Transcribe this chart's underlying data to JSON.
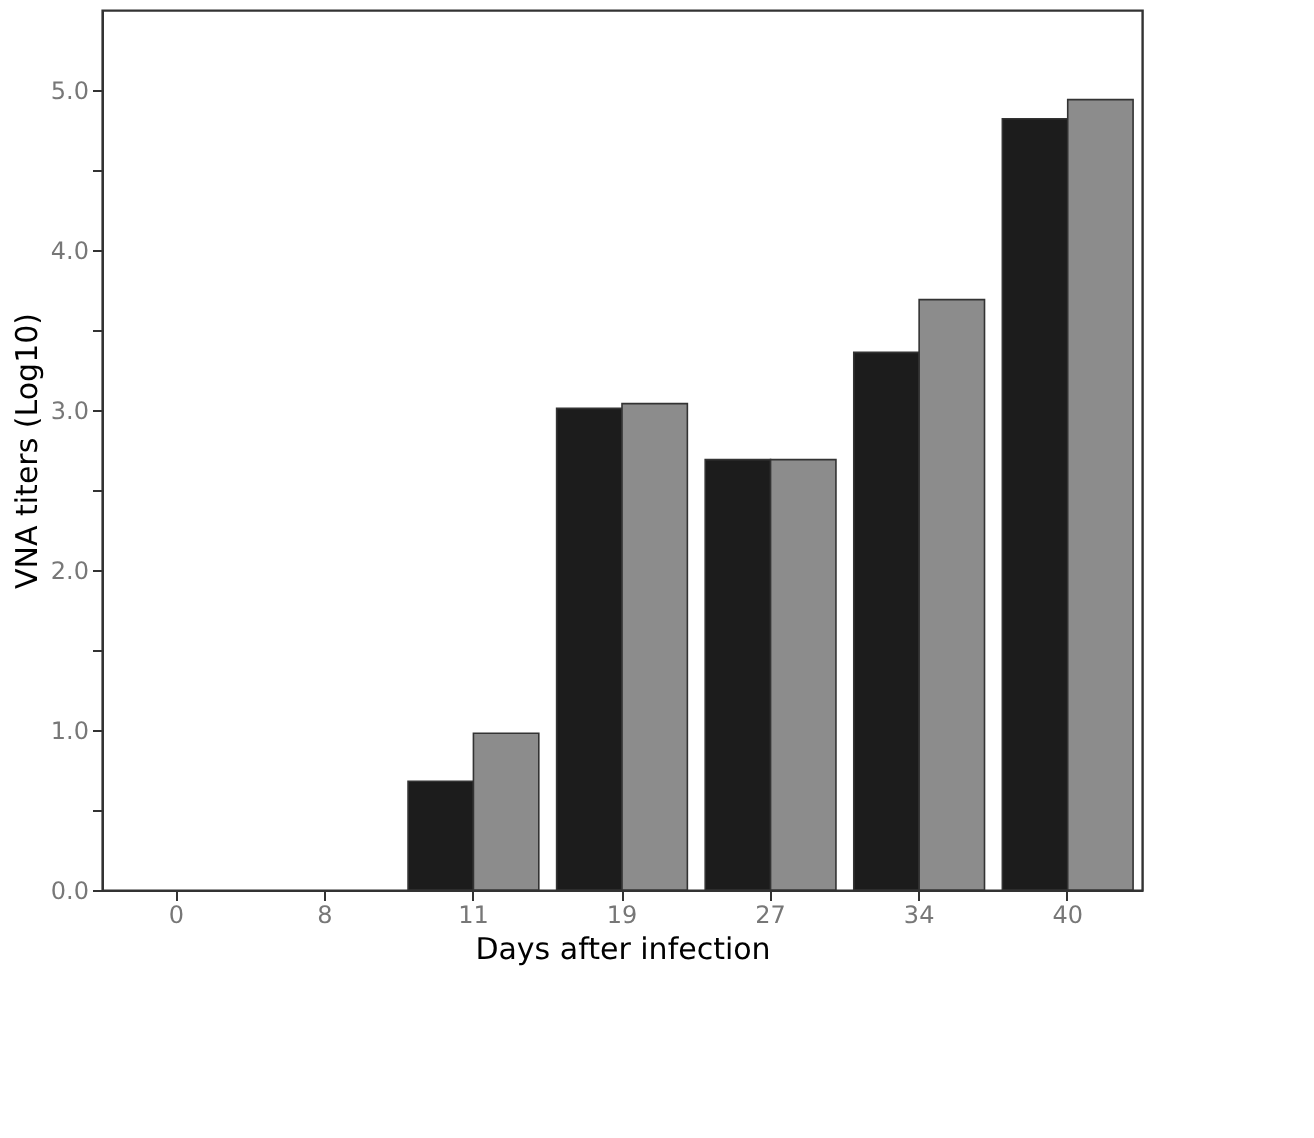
{
  "chart_data": {
    "type": "bar",
    "xlabel": "Days  after infection",
    "ylabel": "VNA   titers   (Log10)",
    "categories": [
      "0",
      "8",
      "11",
      "19",
      "27",
      "34",
      "40"
    ],
    "series": [
      {
        "color": "#1c1c1c",
        "values": [
          null,
          null,
          0.68,
          3.01,
          2.69,
          3.36,
          4.82
        ]
      },
      {
        "color": "#8c8c8c",
        "values": [
          null,
          null,
          0.98,
          3.04,
          2.69,
          3.69,
          4.94
        ]
      }
    ],
    "ylim": [
      0,
      5.5
    ],
    "yticks": [
      {
        "value": 0,
        "label": "0.0"
      },
      {
        "value": 0.5,
        "label": null
      },
      {
        "value": 1,
        "label": "1.0"
      },
      {
        "value": 1.5,
        "label": null
      },
      {
        "value": 2,
        "label": "2.0"
      },
      {
        "value": 2.5,
        "label": null
      },
      {
        "value": 3,
        "label": "3.0"
      },
      {
        "value": 3.5,
        "label": null
      },
      {
        "value": 4,
        "label": "4.0"
      },
      {
        "value": 4.5,
        "label": null
      },
      {
        "value": 5,
        "label": "5.0"
      }
    ],
    "grid": false,
    "legend": false
  }
}
